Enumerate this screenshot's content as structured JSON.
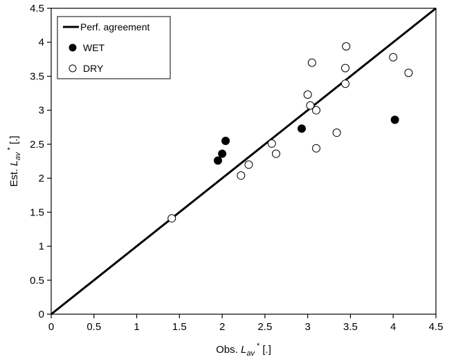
{
  "chart_data": {
    "type": "scatter",
    "title": "",
    "xlabel": {
      "prefix": "Obs. ",
      "var": "L",
      "sub": "av",
      "sup": "*",
      "suffix": " [.]"
    },
    "ylabel": {
      "prefix": "Est. ",
      "var": "L",
      "sub": "av",
      "sup": "*",
      "suffix": " [.]"
    },
    "xlim": [
      0,
      4.5
    ],
    "ylim": [
      0,
      4.5
    ],
    "xticks": [
      "0",
      "0.5",
      "1",
      "1.5",
      "2",
      "2.5",
      "3",
      "3.5",
      "4",
      "4.5"
    ],
    "yticks": [
      "0",
      "0.5",
      "1",
      "1.5",
      "2",
      "2.5",
      "3",
      "3.5",
      "4",
      "4.5"
    ],
    "grid": false,
    "legend_position": "top-left",
    "series": [
      {
        "name": "Perf. agreement",
        "kind": "line",
        "points": [
          [
            0,
            0
          ],
          [
            4.5,
            4.5
          ]
        ]
      },
      {
        "name": "WET",
        "kind": "filled-circle",
        "points": [
          [
            1.95,
            2.26
          ],
          [
            2.0,
            2.36
          ],
          [
            2.04,
            2.55
          ],
          [
            2.93,
            2.73
          ],
          [
            4.02,
            2.86
          ]
        ]
      },
      {
        "name": "DRY",
        "kind": "open-circle",
        "points": [
          [
            1.41,
            1.41
          ],
          [
            2.22,
            2.04
          ],
          [
            2.31,
            2.2
          ],
          [
            2.58,
            2.51
          ],
          [
            2.63,
            2.36
          ],
          [
            3.0,
            3.23
          ],
          [
            3.03,
            3.07
          ],
          [
            3.05,
            3.7
          ],
          [
            3.1,
            3.0
          ],
          [
            3.1,
            2.44
          ],
          [
            3.34,
            2.67
          ],
          [
            3.44,
            3.62
          ],
          [
            3.44,
            3.39
          ],
          [
            3.45,
            3.94
          ],
          [
            4.0,
            3.78
          ],
          [
            4.18,
            3.55
          ]
        ]
      }
    ]
  }
}
